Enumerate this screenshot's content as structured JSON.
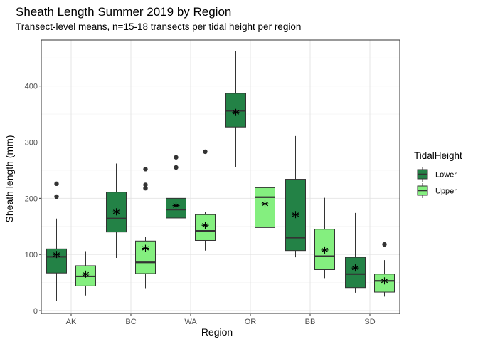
{
  "chart_data": {
    "type": "boxplot",
    "title": "Sheath Length Summer 2019 by Region",
    "subtitle": "Transect-level means, n=15-18 transects per tidal height per region",
    "xlabel": "Region",
    "ylabel": "Sheath length (mm)",
    "ylim": [
      -5,
      482
    ],
    "yticks": [
      0,
      100,
      200,
      300,
      400
    ],
    "grid": true,
    "legend": {
      "title": "TidalHeight",
      "position": "right"
    },
    "categories": [
      "AK",
      "BC",
      "WA",
      "OR",
      "BB",
      "SD"
    ],
    "series": [
      {
        "name": "Lower",
        "color": "#238246",
        "boxes": [
          {
            "category": "AK",
            "whisker_low": 17,
            "q1": 67,
            "median": 96,
            "q3": 110,
            "whisker_high": 164,
            "mean": 100,
            "outliers": [
              203,
              226
            ]
          },
          {
            "category": "BC",
            "whisker_low": 94,
            "q1": 140,
            "median": 164,
            "q3": 211,
            "whisker_high": 262,
            "mean": 176,
            "outliers": []
          },
          {
            "category": "WA",
            "whisker_low": 130,
            "q1": 165,
            "median": 180,
            "q3": 200,
            "whisker_high": 216,
            "mean": 187,
            "outliers": [
              255,
              273
            ]
          },
          {
            "category": "OR",
            "whisker_low": 256,
            "q1": 327,
            "median": 356,
            "q3": 387,
            "whisker_high": 462,
            "mean": 353,
            "outliers": []
          },
          {
            "category": "BB",
            "whisker_low": 95,
            "q1": 107,
            "median": 130,
            "q3": 234,
            "whisker_high": 311,
            "mean": 171,
            "outliers": []
          },
          {
            "category": "SD",
            "whisker_low": 32,
            "q1": 41,
            "median": 65,
            "q3": 95,
            "whisker_high": 174,
            "mean": 76,
            "outliers": []
          }
        ]
      },
      {
        "name": "Upper",
        "color": "#84ef7f",
        "boxes": [
          {
            "category": "AK",
            "whisker_low": 27,
            "q1": 44,
            "median": 61,
            "q3": 80,
            "whisker_high": 106,
            "mean": 65,
            "outliers": []
          },
          {
            "category": "BC",
            "whisker_low": 40,
            "q1": 66,
            "median": 86,
            "q3": 124,
            "whisker_high": 131,
            "mean": 111,
            "outliers": [
              218,
              224,
              252
            ]
          },
          {
            "category": "WA",
            "whisker_low": 107,
            "q1": 125,
            "median": 142,
            "q3": 171,
            "whisker_high": 176,
            "mean": 152,
            "outliers": [
              283
            ]
          },
          {
            "category": "OR",
            "whisker_low": 105,
            "q1": 148,
            "median": 202,
            "q3": 219,
            "whisker_high": 279,
            "mean": 190,
            "outliers": []
          },
          {
            "category": "BB",
            "whisker_low": 58,
            "q1": 73,
            "median": 97,
            "q3": 145,
            "whisker_high": 201,
            "mean": 108,
            "outliers": []
          },
          {
            "category": "SD",
            "whisker_low": 25,
            "q1": 33,
            "median": 53,
            "q3": 65,
            "whisker_high": 90,
            "mean": 53,
            "outliers": [
              118
            ]
          }
        ]
      }
    ]
  }
}
